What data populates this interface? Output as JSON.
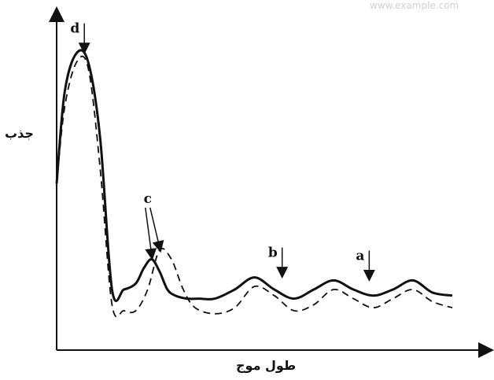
{
  "chart_data": {
    "type": "line",
    "xlabel": "طول موج",
    "ylabel": "جذب",
    "grid": false,
    "legend": "none",
    "series": [
      {
        "style": "solid",
        "color": "#111111",
        "x": [
          0,
          2,
          5,
          8,
          11,
          14,
          17,
          20,
          22,
          24,
          26,
          28,
          30,
          33,
          36,
          40,
          45,
          50,
          55,
          60,
          65,
          70,
          75,
          80,
          85,
          90,
          95,
          100
        ],
        "y": [
          0.55,
          0.85,
          0.98,
          0.95,
          0.7,
          0.2,
          0.2,
          0.22,
          0.27,
          0.3,
          0.26,
          0.2,
          0.18,
          0.17,
          0.17,
          0.17,
          0.2,
          0.24,
          0.2,
          0.17,
          0.2,
          0.23,
          0.2,
          0.18,
          0.2,
          0.23,
          0.19,
          0.18
        ]
      },
      {
        "style": "dashed",
        "color": "#111111",
        "x": [
          0,
          2,
          5,
          8,
          11,
          14,
          17,
          20,
          23,
          26,
          29,
          32,
          35,
          40,
          45,
          50,
          55,
          60,
          65,
          70,
          75,
          80,
          85,
          90,
          95,
          100
        ],
        "y": [
          0.55,
          0.8,
          0.95,
          0.93,
          0.6,
          0.15,
          0.13,
          0.13,
          0.2,
          0.33,
          0.3,
          0.2,
          0.14,
          0.12,
          0.14,
          0.21,
          0.18,
          0.13,
          0.15,
          0.2,
          0.17,
          0.14,
          0.17,
          0.2,
          0.16,
          0.14
        ]
      }
    ],
    "annotations": [
      {
        "label": "d",
        "x": 7,
        "y": 0.98
      },
      {
        "label": "c",
        "x": 27,
        "y": 0.33
      },
      {
        "label": "b",
        "x": 57,
        "y": 0.24
      },
      {
        "label": "a",
        "x": 79,
        "y": 0.23
      }
    ],
    "xlim": [
      0,
      100
    ],
    "ylim": [
      0,
      1
    ]
  },
  "watermark": "www.example.com"
}
